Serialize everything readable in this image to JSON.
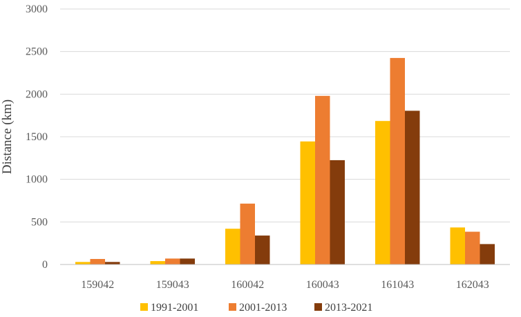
{
  "chart_data": {
    "type": "bar",
    "title": "",
    "xlabel": "",
    "ylabel": "Distance (km)",
    "ylim": [
      0,
      3000
    ],
    "yticks": [
      0,
      500,
      1000,
      1500,
      2000,
      2500,
      3000
    ],
    "grid": true,
    "legend_position": "bottom",
    "categories": [
      "159042",
      "159043",
      "160042",
      "160043",
      "161043",
      "162043"
    ],
    "series": [
      {
        "name": "1991-2001",
        "color": "#FFC000",
        "values": [
          30,
          40,
          420,
          1445,
          1685,
          435
        ]
      },
      {
        "name": "2001-2013",
        "color": "#ED7D31",
        "values": [
          65,
          70,
          715,
          1980,
          2425,
          385
        ]
      },
      {
        "name": "2013-2021",
        "color": "#843C0C",
        "values": [
          30,
          70,
          340,
          1225,
          1805,
          240
        ]
      }
    ]
  }
}
